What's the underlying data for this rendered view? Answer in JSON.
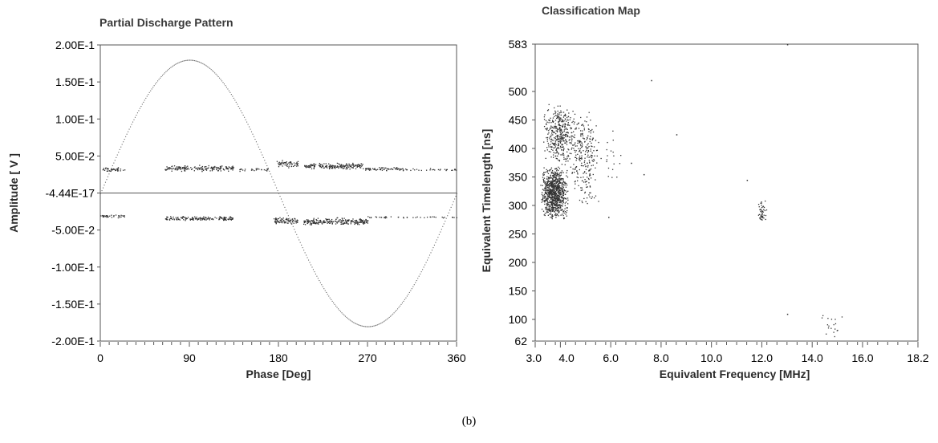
{
  "caption": "(b)",
  "chart_data": [
    {
      "type": "scatter",
      "title": "Partial Discharge Pattern",
      "xlabel": "Phase [Deg]",
      "ylabel": "Amplitude [ V ]",
      "xlim": [
        0,
        360
      ],
      "ylim": [
        -0.2,
        0.2
      ],
      "x_ticks": [
        "0",
        "90",
        "180",
        "270",
        "360"
      ],
      "y_ticks": [
        "2.00E-1",
        "1.50E-1",
        "1.00E-1",
        "5.00E-2",
        "-4.44E-17",
        "-5.00E-2",
        "-1.00E-1",
        "-1.50E-1",
        "-2.00E-1"
      ],
      "reference_sine": {
        "amplitude": 0.18,
        "period_deg": 360
      },
      "zero_line": 0,
      "clusters": [
        {
          "x_range": [
            0,
            25
          ],
          "y_center": 0.032,
          "y_spread": 0.004,
          "count": 40
        },
        {
          "x_range": [
            65,
            135
          ],
          "y_center": 0.034,
          "y_spread": 0.005,
          "count": 170
        },
        {
          "x_range": [
            140,
            170
          ],
          "y_center": 0.032,
          "y_spread": 0.003,
          "count": 25
        },
        {
          "x_range": [
            178,
            200
          ],
          "y_center": 0.04,
          "y_spread": 0.006,
          "count": 60
        },
        {
          "x_range": [
            205,
            265
          ],
          "y_center": 0.037,
          "y_spread": 0.005,
          "count": 180
        },
        {
          "x_range": [
            265,
            310
          ],
          "y_center": 0.033,
          "y_spread": 0.003,
          "count": 70
        },
        {
          "x_range": [
            310,
            360
          ],
          "y_center": 0.032,
          "y_spread": 0.002,
          "count": 25
        },
        {
          "x_range": [
            0,
            25
          ],
          "y_center": -0.031,
          "y_spread": 0.003,
          "count": 35
        },
        {
          "x_range": [
            65,
            135
          ],
          "y_center": -0.034,
          "y_spread": 0.004,
          "count": 160
        },
        {
          "x_range": [
            175,
            200
          ],
          "y_center": -0.037,
          "y_spread": 0.006,
          "count": 80
        },
        {
          "x_range": [
            205,
            270
          ],
          "y_center": -0.038,
          "y_spread": 0.006,
          "count": 220
        },
        {
          "x_range": [
            270,
            360
          ],
          "y_center": -0.032,
          "y_spread": 0.002,
          "count": 40
        }
      ]
    },
    {
      "type": "scatter",
      "title": "Classification Map",
      "xlabel": "Equivalent Frequency [MHz]",
      "ylabel": "Equivalent Timelength [ns]",
      "xlim": [
        3.0,
        18.2
      ],
      "ylim": [
        62,
        583
      ],
      "x_ticks": [
        "3.0",
        "4.0",
        "6.0",
        "8.0",
        "10.0",
        "12.0",
        "14.0",
        "16.0",
        "18.2"
      ],
      "y_ticks": [
        "583",
        "500",
        "450",
        "400",
        "350",
        "300",
        "250",
        "200",
        "150",
        "100",
        "62"
      ],
      "clusters": [
        {
          "x_range": [
            3.2,
            4.3
          ],
          "y_range": [
            275,
            370
          ],
          "count": 900
        },
        {
          "x_range": [
            3.3,
            4.6
          ],
          "y_range": [
            370,
            480
          ],
          "count": 380
        },
        {
          "x_range": [
            4.3,
            5.6
          ],
          "y_range": [
            300,
            470
          ],
          "count": 260
        },
        {
          "x_range": [
            5.6,
            6.6
          ],
          "y_range": [
            330,
            440
          ],
          "count": 18
        },
        {
          "x_range": [
            11.8,
            12.2
          ],
          "y_range": [
            268,
            310
          ],
          "count": 45
        },
        {
          "x_range": [
            14.3,
            15.2
          ],
          "y_range": [
            64,
            118
          ],
          "count": 18
        }
      ],
      "points": [
        {
          "x": 7.6,
          "y": 520
        },
        {
          "x": 8.6,
          "y": 425
        },
        {
          "x": 7.3,
          "y": 355
        },
        {
          "x": 11.4,
          "y": 345
        },
        {
          "x": 13.0,
          "y": 110
        },
        {
          "x": 13.0,
          "y": 583
        },
        {
          "x": 5.9,
          "y": 280
        },
        {
          "x": 6.8,
          "y": 375
        }
      ]
    }
  ]
}
